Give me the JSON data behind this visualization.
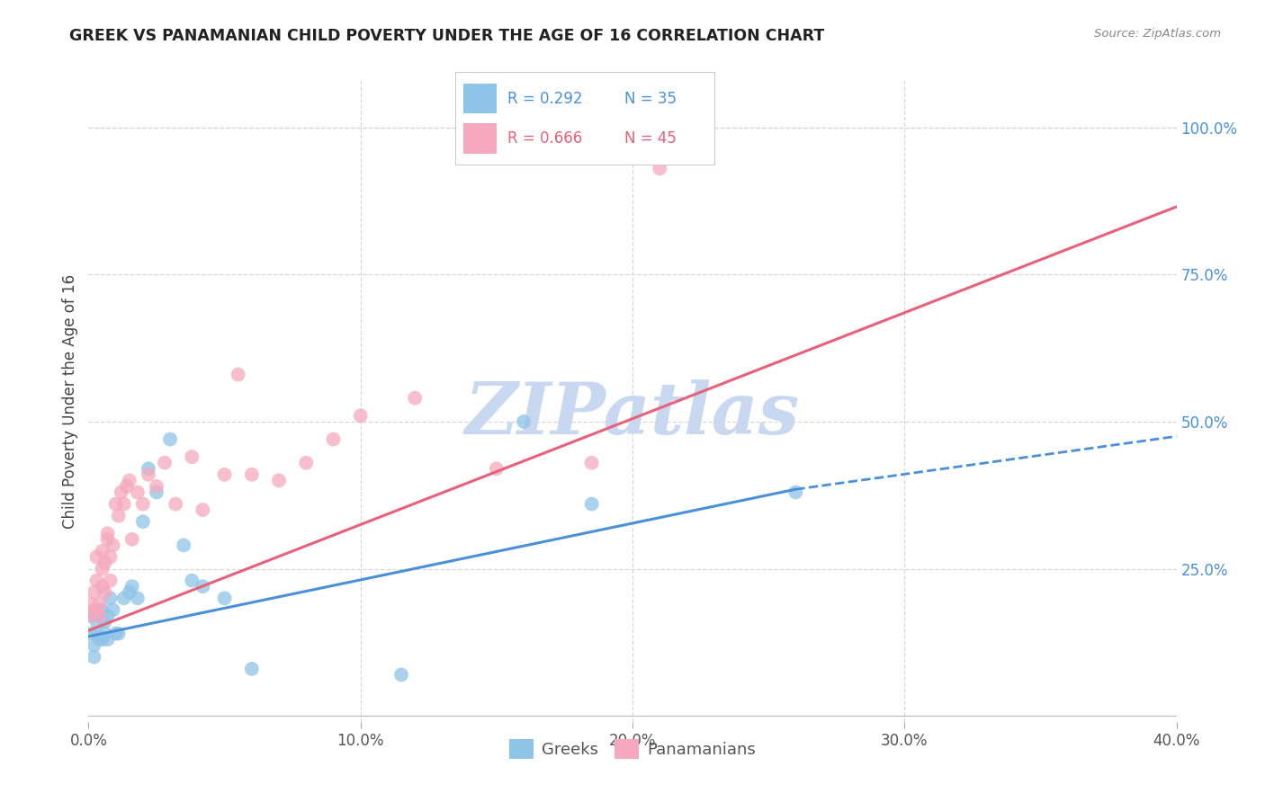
{
  "title": "GREEK VS PANAMANIAN CHILD POVERTY UNDER THE AGE OF 16 CORRELATION CHART",
  "source": "Source: ZipAtlas.com",
  "ylabel": "Child Poverty Under the Age of 16",
  "xlim": [
    0.0,
    0.4
  ],
  "ylim": [
    -0.01,
    1.08
  ],
  "xticks": [
    0.0,
    0.1,
    0.2,
    0.3,
    0.4
  ],
  "xtick_labels": [
    "0.0%",
    "10.0%",
    "20.0%",
    "30.0%",
    "40.0%"
  ],
  "yticks": [
    0.25,
    0.5,
    0.75,
    1.0
  ],
  "ytick_labels": [
    "25.0%",
    "50.0%",
    "75.0%",
    "100.0%"
  ],
  "greek_color": "#8ec4e8",
  "panamanian_color": "#f5a8be",
  "greek_line_color": "#4a90d9",
  "panamanian_line_color": "#e8607a",
  "legend_blue_text_color": "#4a90d9",
  "legend_pink_text_color": "#e8607a",
  "watermark": "ZIPatlas",
  "watermark_color": "#c8d8f0",
  "R_greek": 0.292,
  "N_greek": 35,
  "R_panamanian": 0.666,
  "N_panamanian": 45,
  "greek_x": [
    0.001,
    0.001,
    0.002,
    0.002,
    0.003,
    0.003,
    0.004,
    0.004,
    0.005,
    0.005,
    0.006,
    0.006,
    0.007,
    0.007,
    0.008,
    0.009,
    0.01,
    0.011,
    0.013,
    0.015,
    0.016,
    0.018,
    0.02,
    0.022,
    0.025,
    0.03,
    0.035,
    0.038,
    0.042,
    0.05,
    0.06,
    0.115,
    0.16,
    0.185,
    0.26
  ],
  "greek_y": [
    0.17,
    0.14,
    0.12,
    0.1,
    0.16,
    0.14,
    0.13,
    0.17,
    0.18,
    0.13,
    0.16,
    0.14,
    0.17,
    0.13,
    0.2,
    0.18,
    0.14,
    0.14,
    0.2,
    0.21,
    0.22,
    0.2,
    0.33,
    0.42,
    0.38,
    0.47,
    0.29,
    0.23,
    0.22,
    0.2,
    0.08,
    0.07,
    0.5,
    0.36,
    0.38
  ],
  "panamanian_x": [
    0.001,
    0.001,
    0.002,
    0.002,
    0.003,
    0.003,
    0.003,
    0.004,
    0.004,
    0.005,
    0.005,
    0.005,
    0.006,
    0.006,
    0.007,
    0.007,
    0.008,
    0.008,
    0.009,
    0.01,
    0.011,
    0.012,
    0.013,
    0.014,
    0.015,
    0.016,
    0.018,
    0.02,
    0.022,
    0.025,
    0.028,
    0.032,
    0.038,
    0.042,
    0.05,
    0.055,
    0.06,
    0.07,
    0.08,
    0.09,
    0.1,
    0.12,
    0.15,
    0.185,
    0.21
  ],
  "panamanian_y": [
    0.17,
    0.19,
    0.21,
    0.18,
    0.18,
    0.23,
    0.27,
    0.17,
    0.19,
    0.22,
    0.25,
    0.28,
    0.21,
    0.26,
    0.3,
    0.31,
    0.23,
    0.27,
    0.29,
    0.36,
    0.34,
    0.38,
    0.36,
    0.39,
    0.4,
    0.3,
    0.38,
    0.36,
    0.41,
    0.39,
    0.43,
    0.36,
    0.44,
    0.35,
    0.41,
    0.58,
    0.41,
    0.4,
    0.43,
    0.47,
    0.51,
    0.54,
    0.42,
    0.43,
    0.93
  ],
  "greek_line_x0": 0.0,
  "greek_line_x_solid_end": 0.26,
  "greek_line_x1": 0.4,
  "greek_line_y0": 0.135,
  "greek_line_y_solid_end": 0.385,
  "greek_line_y1": 0.475,
  "pan_line_x0": 0.0,
  "pan_line_x1": 0.4,
  "pan_line_y0": 0.145,
  "pan_line_y1": 0.865,
  "background_color": "#ffffff",
  "grid_color": "#d8d8d8"
}
